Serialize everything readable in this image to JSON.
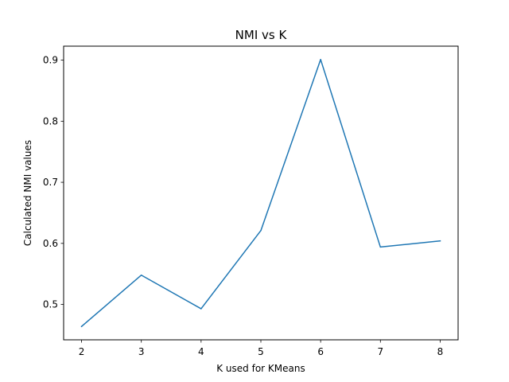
{
  "chart_data": {
    "type": "line",
    "title": "NMI vs K",
    "xlabel": "K used for KMeans",
    "ylabel": "Calculated NMI values",
    "x": [
      2,
      3,
      4,
      5,
      6,
      7,
      8
    ],
    "series": [
      {
        "values": [
          0.464,
          0.548,
          0.493,
          0.621,
          0.901,
          0.594,
          0.604
        ]
      }
    ],
    "xlim": [
      1.7,
      8.3
    ],
    "ylim": [
      0.4421,
      0.9229
    ],
    "xticks": [
      2,
      3,
      4,
      5,
      6,
      7,
      8
    ],
    "yticks": [
      0.5,
      0.6,
      0.7,
      0.8,
      0.9
    ],
    "ytick_labels": [
      "0.5",
      "0.6",
      "0.7",
      "0.8",
      "0.9"
    ],
    "grid": false,
    "line_color": "#1f77b4"
  }
}
